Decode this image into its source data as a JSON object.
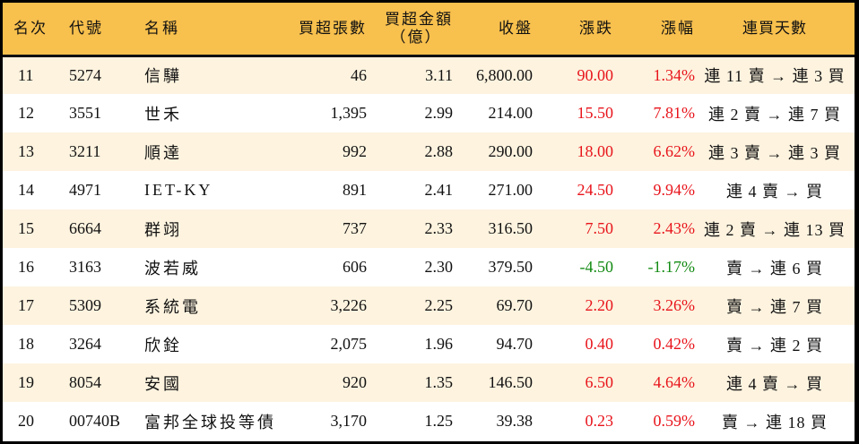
{
  "table": {
    "headers": {
      "rank": "名次",
      "code": "代號",
      "name": "名稱",
      "net_buy_volume": "買超張數",
      "net_buy_amount_line1": "買超金額",
      "net_buy_amount_line2": "（億）",
      "close": "收盤",
      "change": "漲跌",
      "change_pct": "漲幅",
      "streak": "連買天數"
    },
    "colors": {
      "header_bg": "#F8C04D",
      "alt_row_bg": "#FDF3DF",
      "up": "#E8141B",
      "down": "#128A12"
    },
    "rows": [
      {
        "rank": "11",
        "code": "5274",
        "name": "信驊",
        "volume": "46",
        "amount": "3.11",
        "close": "6,800.00",
        "change": "90.00",
        "pct": "1.34%",
        "dir": "up",
        "streak": "連 11 賣 → 連 3 買"
      },
      {
        "rank": "12",
        "code": "3551",
        "name": "世禾",
        "volume": "1,395",
        "amount": "2.99",
        "close": "214.00",
        "change": "15.50",
        "pct": "7.81%",
        "dir": "up",
        "streak": "連 2 賣 → 連 7 買"
      },
      {
        "rank": "13",
        "code": "3211",
        "name": "順達",
        "volume": "992",
        "amount": "2.88",
        "close": "290.00",
        "change": "18.00",
        "pct": "6.62%",
        "dir": "up",
        "streak": "連 3 賣 → 連 3 買"
      },
      {
        "rank": "14",
        "code": "4971",
        "name": "IET-KY",
        "volume": "891",
        "amount": "2.41",
        "close": "271.00",
        "change": "24.50",
        "pct": "9.94%",
        "dir": "up",
        "streak": "連 4 賣 → 買"
      },
      {
        "rank": "15",
        "code": "6664",
        "name": "群翊",
        "volume": "737",
        "amount": "2.33",
        "close": "316.50",
        "change": "7.50",
        "pct": "2.43%",
        "dir": "up",
        "streak": "連 2 賣 → 連 13 買"
      },
      {
        "rank": "16",
        "code": "3163",
        "name": "波若威",
        "volume": "606",
        "amount": "2.30",
        "close": "379.50",
        "change": "-4.50",
        "pct": "-1.17%",
        "dir": "down",
        "streak": "賣 → 連 6 買"
      },
      {
        "rank": "17",
        "code": "5309",
        "name": "系統電",
        "volume": "3,226",
        "amount": "2.25",
        "close": "69.70",
        "change": "2.20",
        "pct": "3.26%",
        "dir": "up",
        "streak": "賣 → 連 7 買"
      },
      {
        "rank": "18",
        "code": "3264",
        "name": "欣銓",
        "volume": "2,075",
        "amount": "1.96",
        "close": "94.70",
        "change": "0.40",
        "pct": "0.42%",
        "dir": "up",
        "streak": "賣 → 連 2 買"
      },
      {
        "rank": "19",
        "code": "8054",
        "name": "安國",
        "volume": "920",
        "amount": "1.35",
        "close": "146.50",
        "change": "6.50",
        "pct": "4.64%",
        "dir": "up",
        "streak": "連 4 賣 → 買"
      },
      {
        "rank": "20",
        "code": "00740B",
        "name": "富邦全球投等債",
        "volume": "3,170",
        "amount": "1.25",
        "close": "39.38",
        "change": "0.23",
        "pct": "0.59%",
        "dir": "up",
        "streak": "賣 → 連 18 買"
      }
    ]
  }
}
